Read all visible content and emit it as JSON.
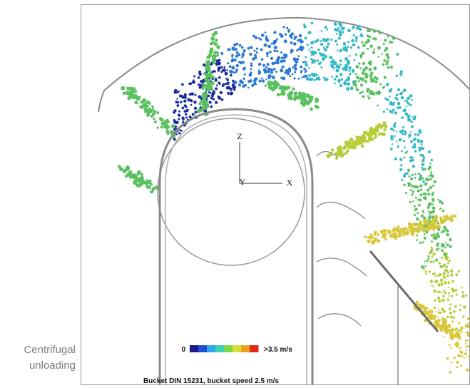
{
  "caption": {
    "line1": "Centrifugal",
    "line2": "unloading"
  },
  "figure": {
    "title": "Bucket DIN 15231, bucket speed 2.5 m/s",
    "axes": {
      "z": "Z",
      "y": "Y",
      "x": "X"
    },
    "colorbar": {
      "min_label": "0",
      "max_label": ">3.5 m/s",
      "colors": [
        "#1a1a8c",
        "#1f4fd0",
        "#2fa8e8",
        "#3fd0b0",
        "#7ad84a",
        "#d8e03a",
        "#f0a020",
        "#e02818"
      ]
    },
    "particle_colors": {
      "slow": "#1c2c9a",
      "mid_slow": "#2a78d0",
      "mid": "#35b8c8",
      "medium": "#5ac060",
      "fast": "#b8cc3a",
      "faster": "#d8c83a"
    }
  }
}
